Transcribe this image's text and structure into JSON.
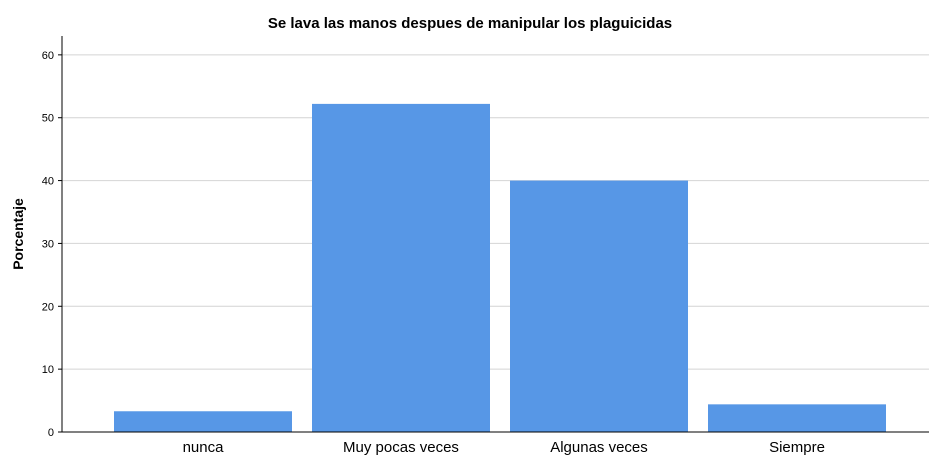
{
  "chart_data": {
    "type": "bar",
    "title": "Se lava las manos despues de manipular los plaguicidas",
    "ylabel": "Porcentaje",
    "xlabel": "",
    "categories": [
      "nunca",
      "Muy pocas veces",
      "Algunas veces",
      "Siempre"
    ],
    "values": [
      3.3,
      52.2,
      40.0,
      4.4
    ],
    "ylim": [
      0,
      63
    ],
    "yticks": [
      "0",
      "10",
      "20",
      "30",
      "40",
      "50",
      "60"
    ],
    "grid": true,
    "bar_color": "#5797e6"
  }
}
